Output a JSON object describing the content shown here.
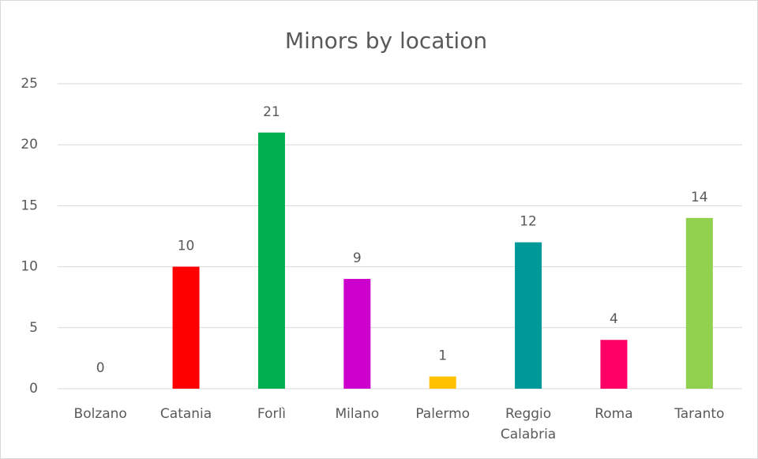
{
  "chart_data": {
    "type": "bar",
    "title": "Minors by location",
    "categories": [
      "Bolzano",
      "Catania",
      "Forlì",
      "Milano",
      "Palermo",
      "Reggio Calabria",
      "Roma",
      "Taranto"
    ],
    "values": [
      0,
      10,
      21,
      9,
      1,
      12,
      4,
      14
    ],
    "colors": [
      "#4472c4",
      "#ff0000",
      "#00b050",
      "#cc00cc",
      "#ffc000",
      "#009999",
      "#ff0066",
      "#92d050"
    ],
    "ylim": [
      0,
      25
    ],
    "yticks": [
      0,
      5,
      10,
      15,
      20,
      25
    ],
    "grid": true
  }
}
